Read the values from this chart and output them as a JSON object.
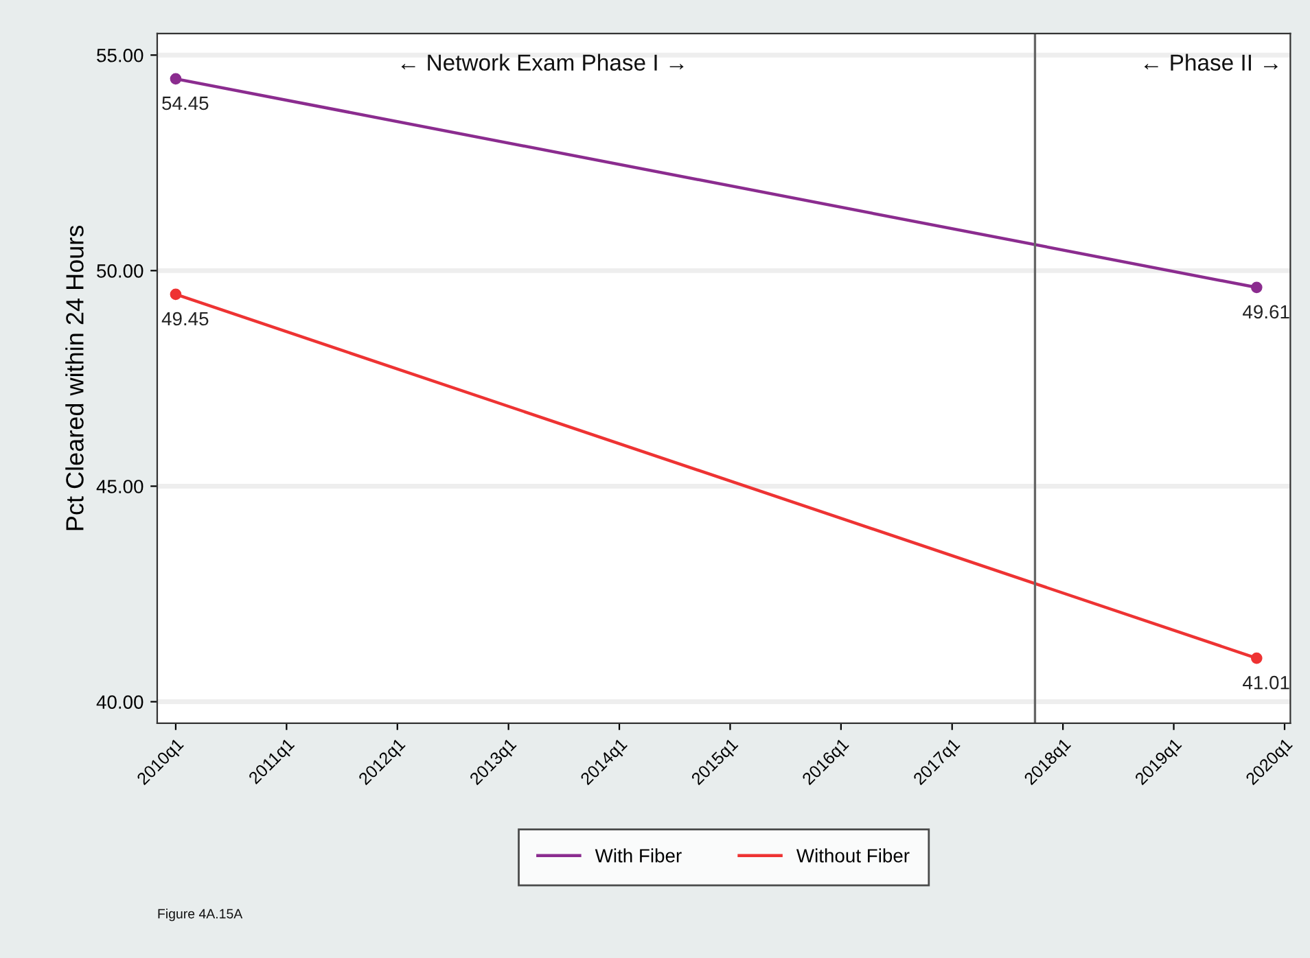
{
  "chart_data": {
    "type": "line",
    "ylabel": "Pct Cleared within 24 Hours",
    "annotations": [
      "← Network Exam Phase I →",
      "← Phase II →",
      "Figure 4A.15A"
    ],
    "series": [
      {
        "name": "With Fiber",
        "color": "#8b2c8f",
        "x": [
          "2010-01-01",
          "2019-10-01"
        ],
        "values": [
          54.45,
          49.61
        ]
      },
      {
        "name": "Without Fiber",
        "color": "#ee3333",
        "x": [
          "2010-01-01",
          "2019-10-01"
        ],
        "values": [
          49.45,
          41.01
        ]
      }
    ],
    "data_labels": true,
    "marker": "circle",
    "line_style": "solid",
    "grid": "y",
    "legend": "bottom",
    "xlim": [
      "2009-11-01",
      "2020-01-20"
    ],
    "ylim": [
      39.5,
      55.5
    ],
    "xticks": [
      {
        "value": "2010-01-01",
        "label": "2010q1"
      },
      {
        "value": "2011-01-01",
        "label": "2011q1"
      },
      {
        "value": "2012-01-01",
        "label": "2012q1"
      },
      {
        "value": "2013-01-01",
        "label": "2013q1"
      },
      {
        "value": "2014-01-01",
        "label": "2014q1"
      },
      {
        "value": "2015-01-01",
        "label": "2015q1"
      },
      {
        "value": "2016-01-01",
        "label": "2016q1"
      },
      {
        "value": "2017-01-01",
        "label": "2017q1"
      },
      {
        "value": "2018-01-01",
        "label": "2018q1"
      },
      {
        "value": "2019-01-01",
        "label": "2019q1"
      },
      {
        "value": "2020-01-01",
        "label": "2020q1"
      }
    ],
    "yticks": [
      {
        "value": 40,
        "label": "40.00"
      },
      {
        "value": 45,
        "label": "45.00"
      },
      {
        "value": 50,
        "label": "50.00"
      },
      {
        "value": 55,
        "label": "55.00"
      }
    ],
    "ref_lines": [
      {
        "axis": "x",
        "value": "2017-10-01",
        "color": "#666666"
      }
    ]
  }
}
